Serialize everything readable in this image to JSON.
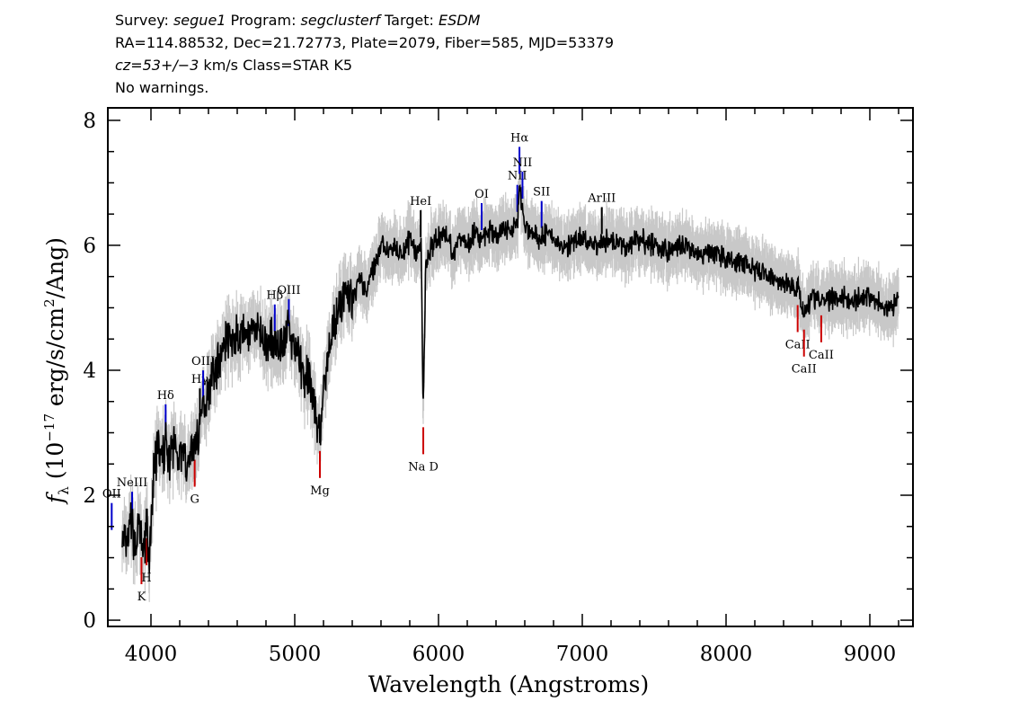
{
  "header": {
    "line1": {
      "survey_label": "Survey: ",
      "survey": "segue1",
      "program_label": " Program: ",
      "program": "segclusterf",
      "target_label": " Target: ",
      "target": "ESDM"
    },
    "line2": "RA=114.88532, Dec=21.72773, Plate=2079, Fiber=585, MJD=53379",
    "line3": {
      "cz": "cz=53+/−3",
      "rest": " km/s Class=STAR K5"
    },
    "line4": "No warnings."
  },
  "chart_data": {
    "type": "line",
    "xlabel": "Wavelength (Angstroms)",
    "ylabel_parts": {
      "f": "f",
      "lambda": "λ",
      "open": " (10",
      "exp": "−17",
      "unit": " erg/s/cm",
      "sq": "2",
      "close": "/Ang)"
    },
    "xlim": [
      3700,
      9300
    ],
    "ylim": [
      -0.1,
      8.2
    ],
    "x_ticks": [
      4000,
      5000,
      6000,
      7000,
      8000,
      9000
    ],
    "y_ticks": [
      0,
      2,
      4,
      6,
      8
    ],
    "x_tick_labels": [
      "4000",
      "5000",
      "6000",
      "7000",
      "8000",
      "9000"
    ],
    "y_tick_labels": [
      "0",
      "2",
      "4",
      "6",
      "8"
    ],
    "series": [
      {
        "role": "flux",
        "color": "#000000",
        "x": [
          3800,
          3830,
          3860,
          3890,
          3920,
          3950,
          3970,
          3990,
          4020,
          4050,
          4080,
          4100,
          4130,
          4160,
          4200,
          4250,
          4300,
          4330,
          4360,
          4400,
          4450,
          4500,
          4550,
          4600,
          4650,
          4700,
          4750,
          4800,
          4850,
          4900,
          4950,
          5000,
          5050,
          5100,
          5150,
          5180,
          5200,
          5250,
          5300,
          5350,
          5400,
          5450,
          5500,
          5550,
          5580,
          5600,
          5650,
          5700,
          5750,
          5800,
          5850,
          5880,
          5893,
          5910,
          5950,
          6000,
          6050,
          6100,
          6150,
          6200,
          6250,
          6300,
          6350,
          6400,
          6450,
          6500,
          6550,
          6563,
          6600,
          6650,
          6700,
          6750,
          6800,
          6900,
          7000,
          7100,
          7200,
          7300,
          7400,
          7500,
          7600,
          7700,
          7800,
          7900,
          8000,
          8100,
          8200,
          8300,
          8400,
          8500,
          8540,
          8600,
          8700,
          8800,
          8900,
          9000,
          9100,
          9200
        ],
        "y": [
          1.3,
          1.1,
          1.6,
          1.2,
          1.5,
          1.0,
          1.6,
          0.9,
          2.4,
          2.8,
          2.5,
          2.9,
          2.6,
          2.8,
          2.7,
          2.5,
          2.8,
          3.0,
          3.4,
          3.7,
          4.0,
          4.4,
          4.6,
          4.5,
          4.6,
          4.5,
          4.7,
          4.4,
          4.5,
          4.4,
          4.6,
          4.4,
          4.0,
          3.8,
          3.3,
          2.9,
          3.8,
          4.5,
          5.0,
          5.3,
          5.1,
          5.5,
          5.3,
          5.6,
          5.8,
          6.0,
          5.9,
          6.0,
          5.8,
          6.1,
          5.9,
          6.0,
          3.2,
          5.7,
          6.0,
          6.1,
          6.2,
          5.9,
          6.1,
          6.0,
          6.2,
          6.1,
          6.2,
          6.1,
          6.3,
          6.2,
          6.4,
          7.0,
          6.3,
          6.2,
          6.1,
          6.2,
          6.1,
          6.0,
          6.1,
          6.0,
          6.1,
          6.0,
          6.1,
          6.0,
          5.9,
          6.0,
          5.8,
          5.9,
          5.8,
          5.7,
          5.6,
          5.5,
          5.4,
          5.3,
          4.9,
          5.2,
          5.1,
          5.2,
          5.1,
          5.2,
          5.0,
          5.1
        ]
      }
    ],
    "emission_lines": [
      {
        "label": "OII",
        "x": 3727,
        "color": "#0000cc"
      },
      {
        "label": "NeIII",
        "x": 3869,
        "color": "#0000cc"
      },
      {
        "label": "Hδ",
        "x": 4102,
        "color": "#0000cc"
      },
      {
        "label": "Hγ",
        "x": 4340,
        "color": "#000000"
      },
      {
        "label": "OIII",
        "x": 4363,
        "color": "#0000cc"
      },
      {
        "label": "Hβ",
        "x": 4861,
        "color": "#0000cc"
      },
      {
        "label": "OIII",
        "x": 4959,
        "color": "#0000cc"
      },
      {
        "label": "HeI",
        "x": 5876,
        "color": "#000000"
      },
      {
        "label": "OI",
        "x": 6300,
        "color": "#0000cc"
      },
      {
        "label": "NII",
        "x": 6548,
        "color": "#0000cc"
      },
      {
        "label": "Hα",
        "x": 6563,
        "color": "#0000cc"
      },
      {
        "label": "NII",
        "x": 6584,
        "color": "#0000cc"
      },
      {
        "label": "SII",
        "x": 6717,
        "color": "#0000cc"
      },
      {
        "label": "ArIII",
        "x": 7136,
        "color": "#000000"
      }
    ],
    "absorption_lines": [
      {
        "label": "K",
        "x": 3934,
        "color": "#cc0000"
      },
      {
        "label": "H",
        "x": 3969,
        "color": "#cc0000"
      },
      {
        "label": "G",
        "x": 4304,
        "color": "#cc0000"
      },
      {
        "label": "Mg",
        "x": 5175,
        "color": "#cc0000"
      },
      {
        "label": "Na D",
        "x": 5894,
        "color": "#cc0000"
      },
      {
        "label": "CaII",
        "x": 8498,
        "color": "#cc0000"
      },
      {
        "label": "CaII",
        "x": 8542,
        "color": "#cc0000"
      },
      {
        "label": "CaII",
        "x": 8662,
        "color": "#cc0000"
      }
    ],
    "grid": false,
    "legend": "none"
  }
}
